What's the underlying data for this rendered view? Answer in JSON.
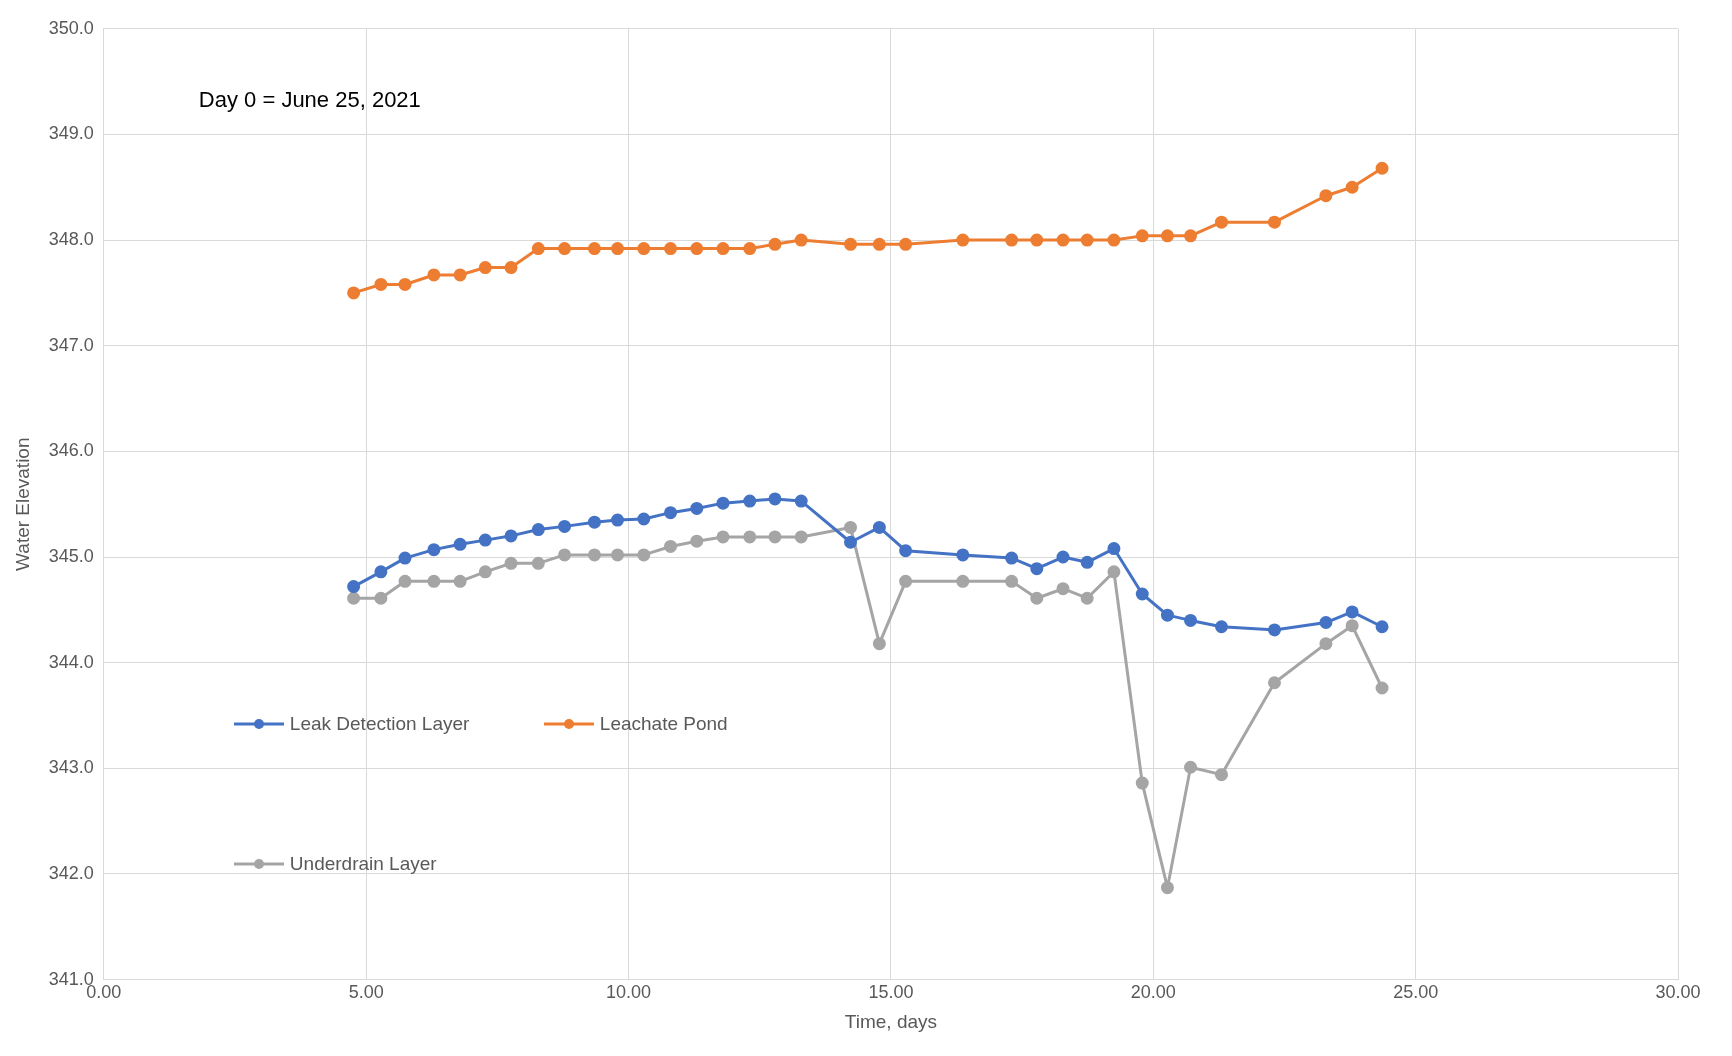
{
  "chart_data": {
    "type": "line",
    "xlabel": "Time, days",
    "ylabel": "Water Elevation",
    "annotations": [
      "Day 0 = June 25, 2021"
    ],
    "x": [
      4.76,
      5.28,
      5.74,
      6.29,
      6.79,
      7.27,
      7.76,
      8.28,
      8.78,
      9.35,
      9.79,
      10.29,
      10.8,
      11.3,
      11.8,
      12.31,
      12.79,
      13.29,
      14.23,
      14.78,
      15.28,
      16.37,
      17.3,
      17.78,
      18.28,
      18.74,
      19.25,
      19.79,
      20.27,
      20.71,
      21.3,
      22.31,
      23.29,
      23.79,
      24.36
    ],
    "series": [
      {
        "name": "Leak Detection Layer",
        "color": "#4472c4",
        "values": [
          344.72,
          344.86,
          344.99,
          345.07,
          345.12,
          345.16,
          345.2,
          345.26,
          345.29,
          345.33,
          345.35,
          345.36,
          345.42,
          345.46,
          345.51,
          345.53,
          345.55,
          345.53,
          345.14,
          345.28,
          345.06,
          345.02,
          344.99,
          344.89,
          345.0,
          344.95,
          345.08,
          344.65,
          344.45,
          344.4,
          344.34,
          344.31,
          344.38,
          344.48,
          344.34
        ]
      },
      {
        "name": "Leachate Pond",
        "color": "#ed7d31",
        "values": [
          347.5,
          347.58,
          347.58,
          347.67,
          347.67,
          347.74,
          347.74,
          347.92,
          347.92,
          347.92,
          347.92,
          347.92,
          347.92,
          347.92,
          347.92,
          347.92,
          347.96,
          348.0,
          347.96,
          347.96,
          347.96,
          348.0,
          348.0,
          348.0,
          348.0,
          348.0,
          348.0,
          348.04,
          348.04,
          348.04,
          348.17,
          348.17,
          348.42,
          348.5,
          348.68
        ]
      },
      {
        "name": "Underdrain Layer",
        "color": "#a5a5a5",
        "values": [
          344.61,
          344.61,
          344.77,
          344.77,
          344.77,
          344.86,
          344.94,
          344.94,
          345.02,
          345.02,
          345.02,
          345.02,
          345.1,
          345.15,
          345.19,
          345.19,
          345.19,
          345.19,
          345.28,
          344.18,
          344.77,
          344.77,
          344.77,
          344.61,
          344.7,
          344.61,
          344.86,
          342.86,
          341.87,
          343.01,
          342.94,
          343.81,
          344.18,
          344.35,
          343.76
        ]
      }
    ],
    "xlim": [
      0,
      30
    ],
    "xticks": [
      {
        "value": 0,
        "label": "0.00"
      },
      {
        "value": 5,
        "label": "5.00"
      },
      {
        "value": 10,
        "label": "10.00"
      },
      {
        "value": 15,
        "label": "15.00"
      },
      {
        "value": 20,
        "label": "20.00"
      },
      {
        "value": 25,
        "label": "25.00"
      },
      {
        "value": 30,
        "label": "30.00"
      }
    ],
    "ylim": [
      341,
      350
    ],
    "yticks": [
      {
        "value": 341,
        "label": "341.0"
      },
      {
        "value": 342,
        "label": "342.0"
      },
      {
        "value": 343,
        "label": "343.0"
      },
      {
        "value": 344,
        "label": "344.0"
      },
      {
        "value": 345,
        "label": "345.0"
      },
      {
        "value": 346,
        "label": "346.0"
      },
      {
        "value": 347,
        "label": "347.0"
      },
      {
        "value": 348,
        "label": "348.0"
      },
      {
        "value": 349,
        "label": "349.0"
      },
      {
        "value": 350,
        "label": "350.0"
      }
    ],
    "grid": true,
    "legend": "left",
    "marker": "circle",
    "line_style": "solid"
  }
}
